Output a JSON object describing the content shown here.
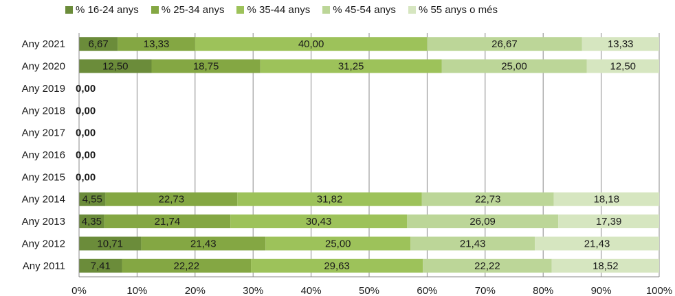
{
  "chart_data": {
    "type": "bar",
    "orientation": "horizontal",
    "stacked": "percent",
    "categories": [
      "Any 2021",
      "Any 2020",
      "Any 2019",
      "Any 2018",
      "Any 2017",
      "Any 2016",
      "Any 2015",
      "Any 2014",
      "Any 2013",
      "Any 2012",
      "Any 2011"
    ],
    "series": [
      {
        "name": "% 16-24 anys",
        "color": "#6b8c3a",
        "values": [
          6.67,
          12.5,
          0,
          0,
          0,
          0,
          0,
          4.55,
          4.35,
          10.71,
          7.41
        ],
        "labels": [
          "6,67",
          "12,50",
          "0,00",
          "0,00",
          "0,00",
          "0,00",
          "0,00",
          "4,55",
          "4,35",
          "10,71",
          "7,41"
        ]
      },
      {
        "name": "% 25-34 anys",
        "color": "#84a743",
        "values": [
          13.33,
          18.75,
          0,
          0,
          0,
          0,
          0,
          22.73,
          21.74,
          21.43,
          22.22
        ],
        "labels": [
          "13,33",
          "18,75",
          "",
          "",
          "",
          "",
          "",
          "22,73",
          "21,74",
          "21,43",
          "22,22"
        ]
      },
      {
        "name": "% 35-44 anys",
        "color": "#9dc25a",
        "values": [
          40.0,
          31.25,
          0,
          0,
          0,
          0,
          0,
          31.82,
          30.43,
          25.0,
          29.63
        ],
        "labels": [
          "40,00",
          "31,25",
          "",
          "",
          "",
          "",
          "",
          "31,82",
          "30,43",
          "25,00",
          "29,63"
        ]
      },
      {
        "name": "% 45-54 anys",
        "color": "#bcd698",
        "values": [
          26.67,
          25.0,
          0,
          0,
          0,
          0,
          0,
          22.73,
          26.09,
          21.43,
          22.22
        ],
        "labels": [
          "26,67",
          "25,00",
          "",
          "",
          "",
          "",
          "",
          "22,73",
          "26,09",
          "21,43",
          "22,22"
        ]
      },
      {
        "name": "% 55 anys o més",
        "color": "#d6e6c0",
        "values": [
          13.33,
          12.5,
          0,
          0,
          0,
          0,
          0,
          18.18,
          17.39,
          21.43,
          18.52
        ],
        "labels": [
          "13,33",
          "12,50",
          "",
          "",
          "",
          "",
          "",
          "18,18",
          "17,39",
          "21,43",
          "18,52"
        ]
      }
    ],
    "x_ticks": [
      "0%",
      "10%",
      "20%",
      "30%",
      "40%",
      "50%",
      "60%",
      "70%",
      "80%",
      "90%",
      "100%"
    ],
    "xlim": [
      0,
      100
    ],
    "grid": true,
    "legend_position": "top"
  }
}
